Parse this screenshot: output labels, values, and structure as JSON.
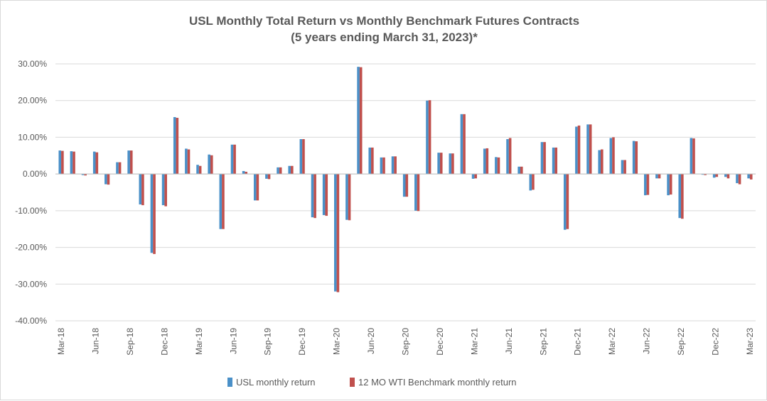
{
  "chart_data": {
    "type": "bar",
    "title": "USL Monthly Total Return vs Monthly Benchmark Futures Contracts",
    "subtitle": "(5 years ending March 31, 2023)*",
    "ylim": [
      -40,
      30
    ],
    "yticks": [
      30,
      20,
      10,
      0,
      -10,
      -20,
      -30,
      -40
    ],
    "ytick_labels": [
      "30.00%",
      "20.00%",
      "10.00%",
      "0.00%",
      "-10.00%",
      "-20.00%",
      "-30.00%",
      "-40.00%"
    ],
    "grid": true,
    "legend_position": "bottom",
    "categories": [
      "Mar-18",
      "Apr-18",
      "May-18",
      "Jun-18",
      "Jul-18",
      "Aug-18",
      "Sep-18",
      "Oct-18",
      "Nov-18",
      "Dec-18",
      "Jan-19",
      "Feb-19",
      "Mar-19",
      "Apr-19",
      "May-19",
      "Jun-19",
      "Jul-19",
      "Aug-19",
      "Sep-19",
      "Oct-19",
      "Nov-19",
      "Dec-19",
      "Jan-20",
      "Feb-20",
      "Mar-20",
      "Apr-20",
      "May-20",
      "Jun-20",
      "Jul-20",
      "Aug-20",
      "Sep-20",
      "Oct-20",
      "Nov-20",
      "Dec-20",
      "Jan-21",
      "Feb-21",
      "Mar-21",
      "Apr-21",
      "May-21",
      "Jun-21",
      "Jul-21",
      "Aug-21",
      "Sep-21",
      "Oct-21",
      "Nov-21",
      "Dec-21",
      "Jan-22",
      "Feb-22",
      "Mar-22",
      "Apr-22",
      "May-22",
      "Jun-22",
      "Jul-22",
      "Aug-22",
      "Sep-22",
      "Oct-22",
      "Nov-22",
      "Dec-22",
      "Jan-23",
      "Feb-23",
      "Mar-23"
    ],
    "xtick_labels": [
      "Mar-18",
      "Jun-18",
      "Sep-18",
      "Dec-18",
      "Mar-19",
      "Jun-19",
      "Sep-19",
      "Dec-19",
      "Mar-20",
      "Jun-20",
      "Sep-20",
      "Dec-20",
      "Mar-21",
      "Jun-21",
      "Sep-21",
      "Dec-21",
      "Mar-22",
      "Jun-22",
      "Sep-22",
      "Dec-22",
      "Mar-23"
    ],
    "series": [
      {
        "name": "USL monthly return",
        "color": "#4a90c8",
        "values": [
          6.4,
          6.2,
          -0.3,
          6.1,
          -2.8,
          3.2,
          6.4,
          -8.3,
          -21.5,
          -8.5,
          15.5,
          6.9,
          2.5,
          5.3,
          -15.0,
          8.0,
          0.8,
          -7.2,
          -1.3,
          1.8,
          2.2,
          9.5,
          -11.8,
          -11.2,
          -32.0,
          -12.5,
          29.2,
          7.2,
          4.5,
          4.8,
          -6.2,
          -10.0,
          20.0,
          5.8,
          5.6,
          16.3,
          -1.3,
          6.9,
          4.6,
          9.5,
          2.0,
          -4.5,
          8.7,
          7.2,
          -15.2,
          12.9,
          13.5,
          6.5,
          9.8,
          3.8,
          9.0,
          -5.8,
          -1.2,
          -5.8,
          -12.0,
          9.8,
          -0.2,
          -1.0,
          -0.8,
          -2.5,
          -1.2
        ]
      },
      {
        "name": "12 MO WTI Benchmark monthly return",
        "color": "#c0504d",
        "values": [
          6.3,
          6.1,
          -0.4,
          5.9,
          -2.9,
          3.2,
          6.4,
          -8.5,
          -21.8,
          -8.8,
          15.3,
          6.7,
          2.2,
          5.1,
          -15.0,
          8.0,
          0.6,
          -7.2,
          -1.4,
          1.8,
          2.2,
          9.5,
          -12.0,
          -11.4,
          -32.2,
          -12.6,
          29.1,
          7.2,
          4.5,
          4.8,
          -6.2,
          -10.1,
          20.1,
          5.8,
          5.6,
          16.3,
          -1.2,
          7.0,
          4.5,
          9.8,
          2.0,
          -4.3,
          8.7,
          7.2,
          -15.0,
          13.2,
          13.5,
          6.7,
          10.0,
          3.8,
          8.9,
          -5.7,
          -1.2,
          -5.6,
          -12.2,
          9.7,
          -0.3,
          -0.8,
          -1.2,
          -2.8,
          -1.5
        ]
      }
    ]
  }
}
